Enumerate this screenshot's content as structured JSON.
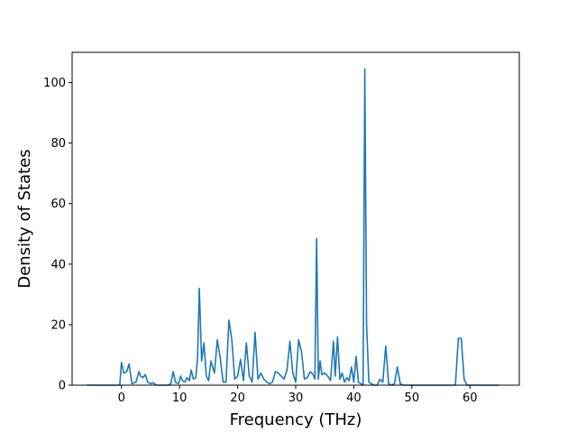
{
  "chart_data": {
    "type": "line",
    "title": "",
    "xlabel": "Frequency (THz)",
    "ylabel": "Density of States",
    "xlim": [
      -8.5,
      68.5
    ],
    "ylim": [
      0,
      110
    ],
    "xticks": [
      0,
      10,
      20,
      30,
      40,
      50,
      60
    ],
    "yticks": [
      0,
      20,
      40,
      60,
      80,
      100
    ],
    "grid": false,
    "legend": "none",
    "colors": {
      "line": "#1f77b4",
      "axes": "#000000",
      "background": "#ffffff"
    },
    "series": [
      {
        "x": [
          -6,
          -1,
          -0.3,
          0,
          0.4,
          0.9,
          1.3,
          1.8,
          2.5,
          3,
          3.3,
          3.7,
          4.1,
          4.5,
          5,
          5.5,
          6,
          8,
          8.5,
          8.9,
          9.3,
          9.8,
          10.2,
          10.5,
          10.9,
          11.3,
          11.7,
          12,
          12.4,
          12.8,
          13.1,
          13.4,
          13.8,
          14.2,
          14.6,
          15,
          15.4,
          16,
          16.5,
          17,
          17.5,
          18,
          18.5,
          19,
          19.5,
          20,
          20.5,
          21,
          21.5,
          22,
          22.5,
          23,
          23.5,
          24,
          24.5,
          25,
          25.5,
          26,
          26.5,
          27,
          27.5,
          28,
          28.5,
          29,
          29.5,
          30,
          30.5,
          31,
          31.5,
          32,
          32.5,
          33,
          33.3,
          33.6,
          33.9,
          34.2,
          34.5,
          35,
          35.5,
          36,
          36.5,
          36.8,
          37.2,
          37.6,
          38,
          38.4,
          38.8,
          39.2,
          39.6,
          40,
          40.4,
          40.8,
          41.2,
          41.6,
          41.9,
          42.2,
          42.6,
          43,
          43.5,
          44,
          44.5,
          45,
          45.5,
          46,
          46.5,
          47,
          47.5,
          48,
          48.5,
          50,
          55,
          57.5,
          58,
          58.5,
          59,
          59.5,
          60,
          65
        ],
        "y": [
          0,
          0,
          0,
          7.5,
          4,
          4.5,
          7,
          0.5,
          1,
          4.5,
          3,
          2.5,
          3.5,
          1,
          0.5,
          0.8,
          0,
          0,
          0.5,
          4.5,
          1,
          0.5,
          3,
          1.5,
          1,
          2.5,
          1.5,
          5,
          2,
          2.5,
          9,
          32,
          8,
          14,
          3,
          1.5,
          8,
          4,
          15,
          9,
          1,
          1,
          21.5,
          15,
          2,
          3,
          8.5,
          1.5,
          14,
          3,
          1,
          17.5,
          2,
          4,
          2,
          1,
          0.5,
          1,
          4.5,
          4,
          3,
          2,
          5,
          14.5,
          4,
          1,
          15,
          11,
          2,
          2.5,
          4.5,
          3.5,
          2,
          48.5,
          2,
          8,
          3.5,
          4,
          3,
          1.5,
          14.5,
          3,
          16,
          2,
          4,
          1,
          2.5,
          1.5,
          6,
          1,
          9.5,
          1,
          0.5,
          0,
          104.5,
          20,
          1,
          0.5,
          0,
          0,
          2,
          1,
          13,
          0.5,
          0,
          0.5,
          6,
          0.5,
          0,
          0,
          0,
          0,
          15.5,
          15.5,
          2,
          0,
          0,
          0
        ]
      }
    ]
  }
}
